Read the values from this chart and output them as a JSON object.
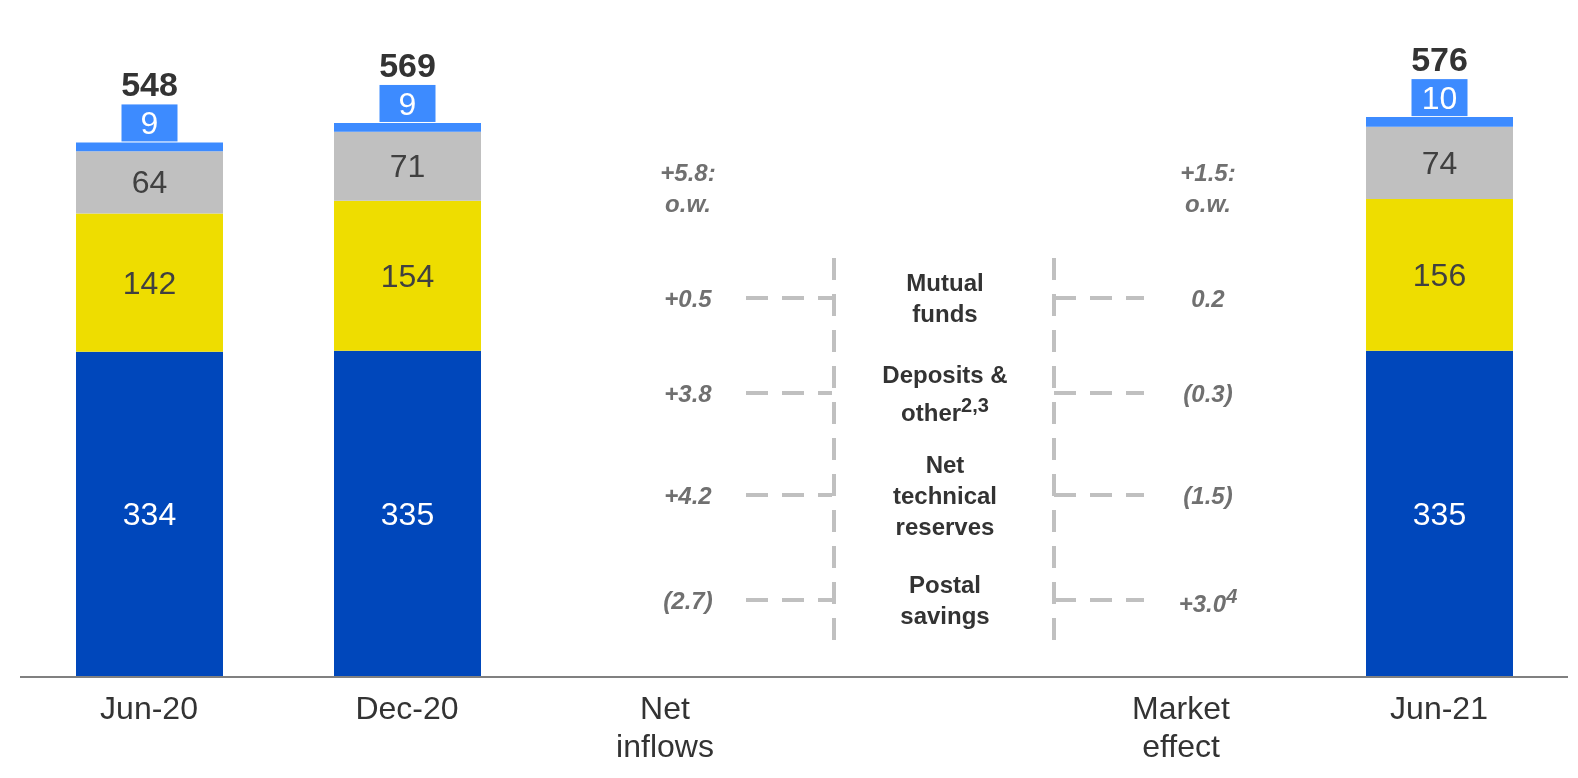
{
  "chart_data": {
    "type": "bar",
    "stacked": true,
    "data_labels": true,
    "categories": [
      "Jun-20",
      "Dec-20",
      "Net inflows",
      null,
      "Market effect",
      "Jun-21"
    ],
    "series": [
      {
        "color": "#0047bb",
        "values": [
          334,
          335,
          null,
          null,
          null,
          335
        ]
      },
      {
        "color": "#eedd00",
        "values": [
          142,
          154,
          null,
          null,
          null,
          156
        ]
      },
      {
        "color": "#c0c0c0",
        "values": [
          64,
          71,
          null,
          null,
          null,
          74
        ]
      },
      {
        "color": "#3d8bff",
        "values": [
          9,
          9,
          null,
          null,
          null,
          10
        ]
      }
    ],
    "totals": [
      "548",
      "569",
      null,
      null,
      null,
      "576"
    ],
    "annotations": [
      "+5.8: o.w.",
      "+1.5: o.w.",
      "+0.5",
      "Mutual funds",
      "0.2",
      "+3.8",
      "Deposits & other$^{2,3}$",
      "(0.3)",
      "+4.2",
      "Net technical reserves",
      "(1.5)",
      "(2.7)",
      "Postal savings",
      "+3.0$^{4}$"
    ]
  }
}
